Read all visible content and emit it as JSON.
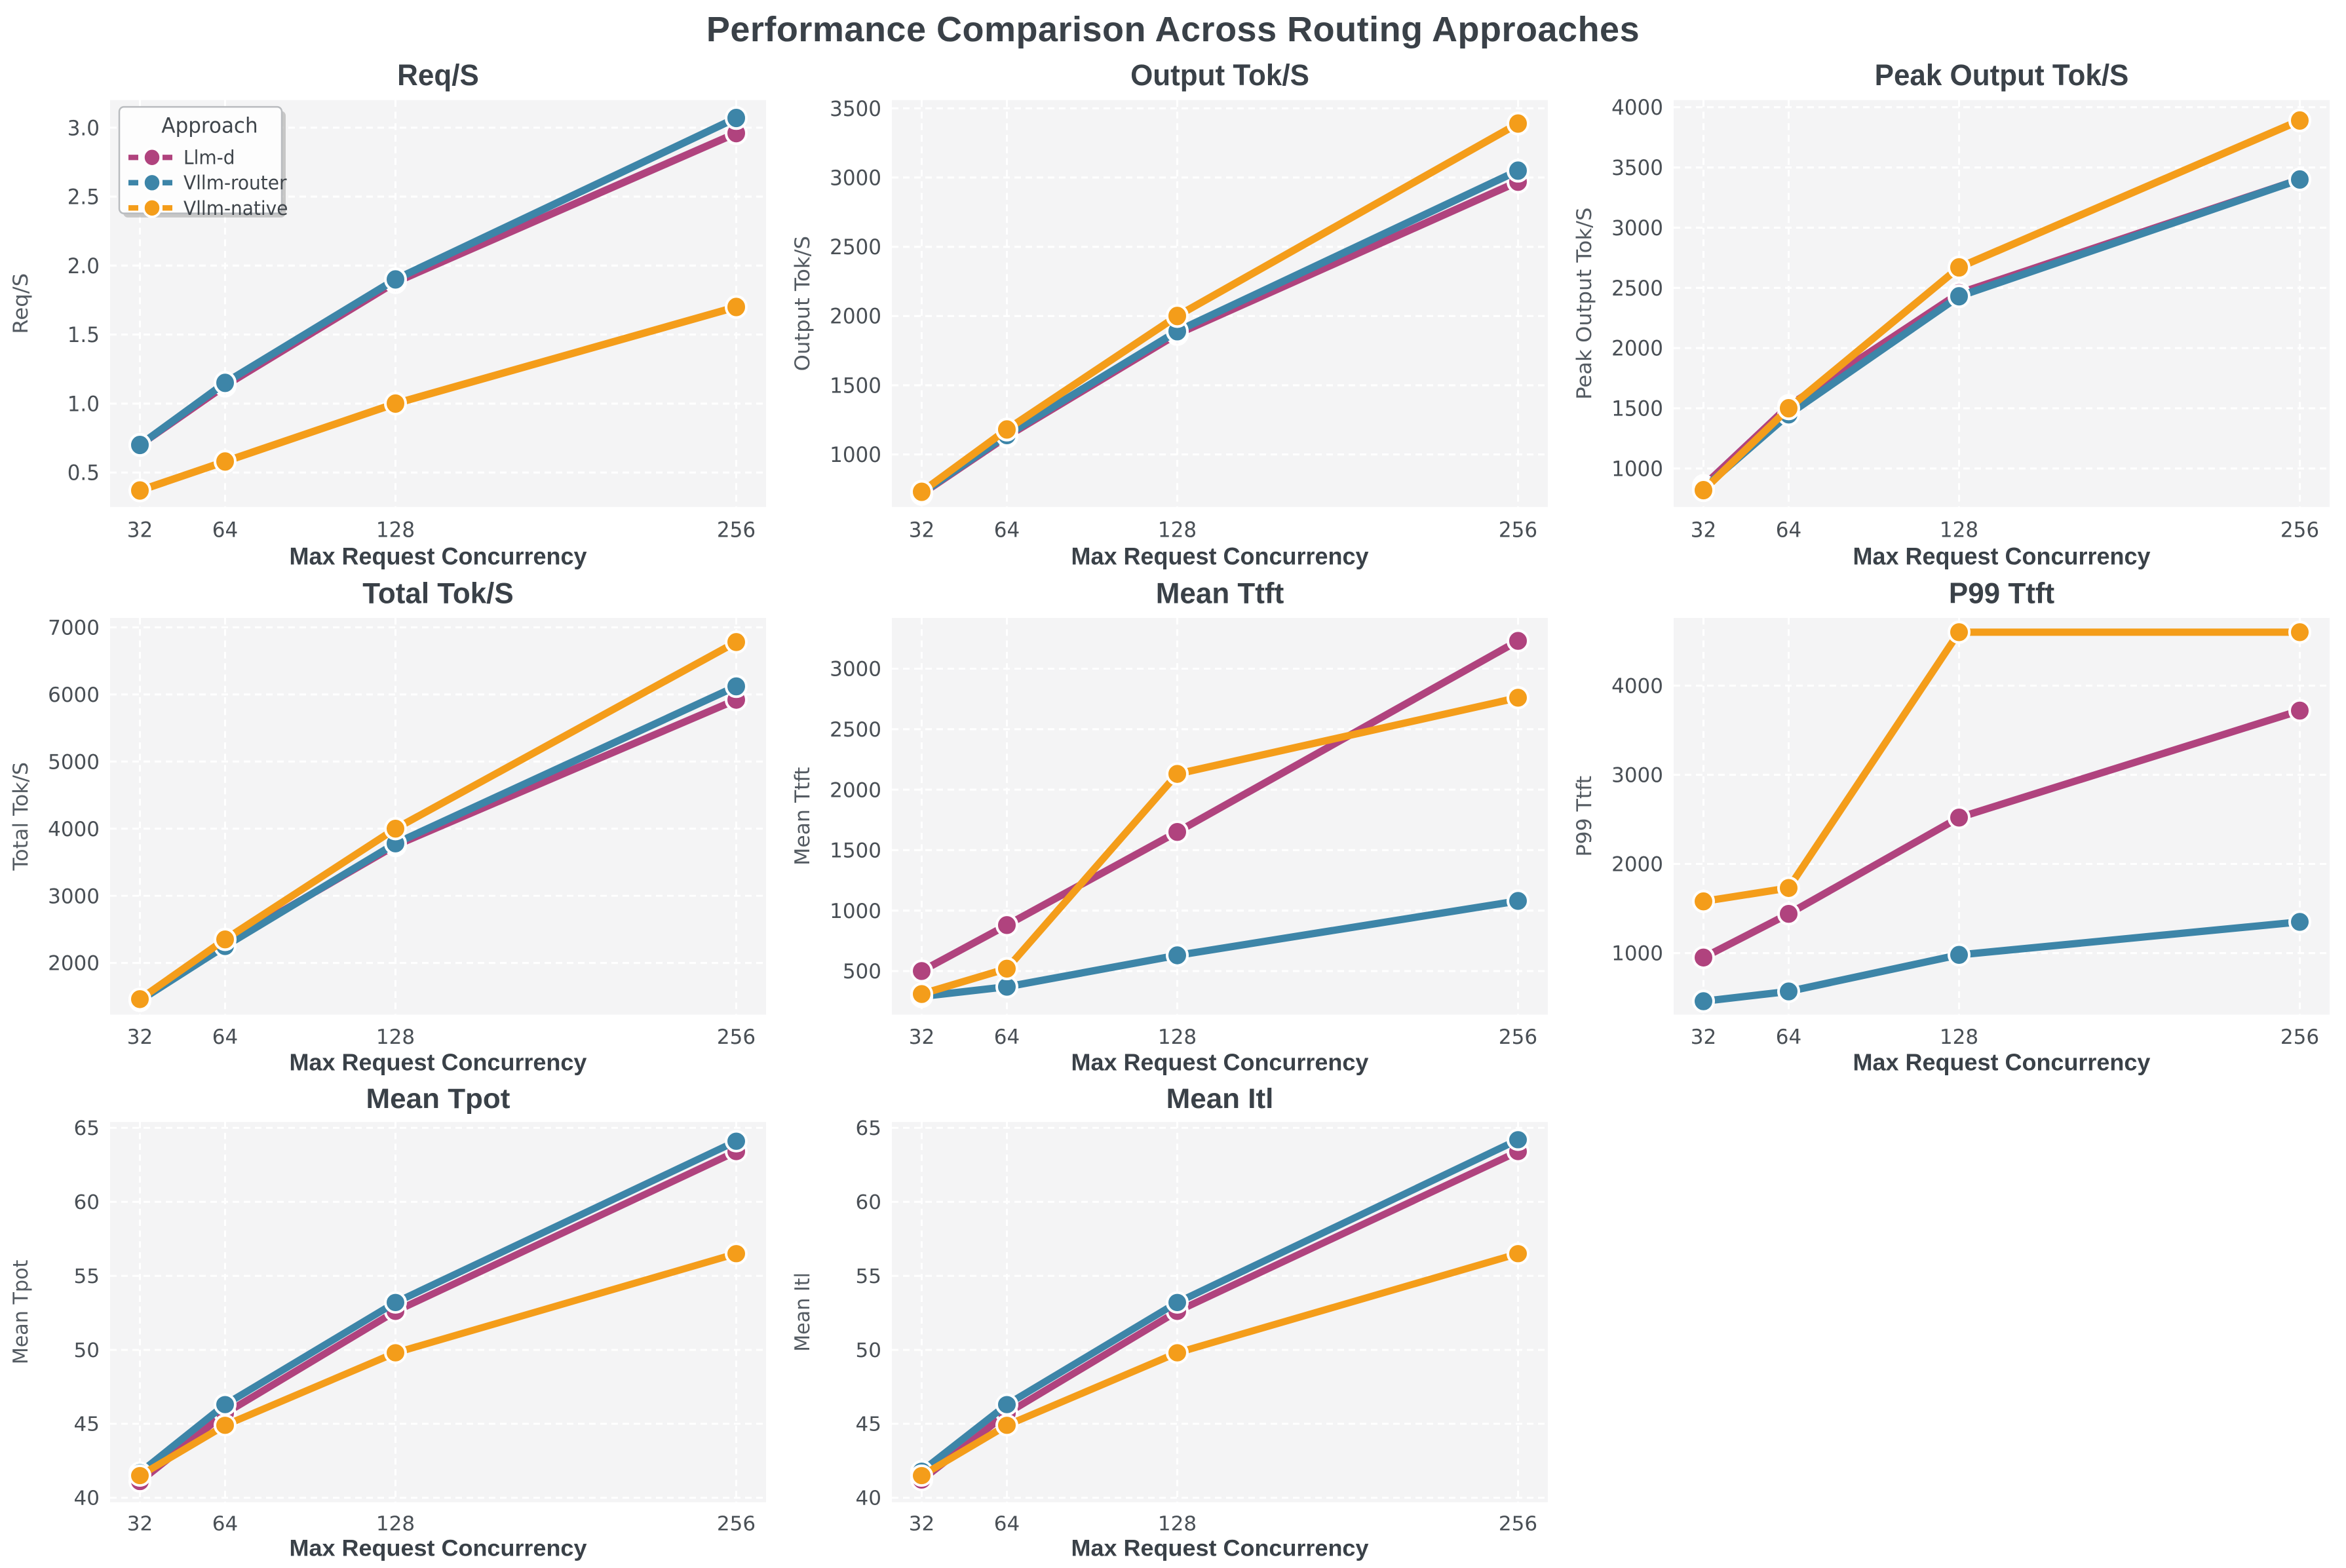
{
  "page": {
    "title": "Performance Comparison Across Routing Approaches"
  },
  "legend": {
    "title": "Approach",
    "entries": [
      {
        "label": "Llm-d",
        "color": "#b0437e"
      },
      {
        "label": "Vllm-router",
        "color": "#3d85a8"
      },
      {
        "label": "Vllm-native",
        "color": "#f49d1a"
      }
    ]
  },
  "colors": {
    "plot_bg": "#f4f4f5",
    "grid": "#ffffff",
    "title_text": "#3a4148",
    "tick_text": "#494f55",
    "legend_border": "#b9bcbf",
    "legend_bg": "#fdfdfd"
  },
  "chart_data": [
    {
      "type": "line",
      "title": "Req/S",
      "ylabel": "Req/S",
      "xlabel": "Max Request Concurrency",
      "x": [
        32,
        64,
        128,
        256
      ],
      "xtick_labels": [
        "32",
        "64",
        "128",
        "256"
      ],
      "yticks": [
        0.5,
        1.0,
        1.5,
        2.0,
        2.5,
        3.0
      ],
      "ytick_labels": [
        "0.5",
        "1.0",
        "1.5",
        "2.0",
        "2.5",
        "3.0"
      ],
      "ylim": [
        0.25,
        3.2
      ],
      "legend": true,
      "series": [
        {
          "name": "Llm-d",
          "values": [
            0.7,
            1.13,
            1.88,
            2.96
          ]
        },
        {
          "name": "Vllm-router",
          "values": [
            0.7,
            1.15,
            1.9,
            3.07
          ]
        },
        {
          "name": "Vllm-native",
          "values": [
            0.37,
            0.58,
            1.0,
            1.7
          ]
        }
      ]
    },
    {
      "type": "line",
      "title": "Output Tok/S",
      "ylabel": "Output Tok/S",
      "xlabel": "Max Request Concurrency",
      "x": [
        32,
        64,
        128,
        256
      ],
      "xtick_labels": [
        "32",
        "64",
        "128",
        "256"
      ],
      "yticks": [
        1000,
        1500,
        2000,
        2500,
        3000,
        3500
      ],
      "ylim": [
        620,
        3560
      ],
      "legend": false,
      "series": [
        {
          "name": "Llm-d",
          "values": [
            715,
            1130,
            1870,
            2970
          ]
        },
        {
          "name": "Vllm-router",
          "values": [
            720,
            1140,
            1890,
            3050
          ]
        },
        {
          "name": "Vllm-native",
          "values": [
            730,
            1180,
            2000,
            3390
          ]
        }
      ]
    },
    {
      "type": "line",
      "title": "Peak Output Tok/S",
      "ylabel": "Peak Output Tok/S",
      "xlabel": "Max Request Concurrency",
      "x": [
        32,
        64,
        128,
        256
      ],
      "xtick_labels": [
        "32",
        "64",
        "128",
        "256"
      ],
      "yticks": [
        1000,
        1500,
        2000,
        2500,
        3000,
        3500,
        4000
      ],
      "ylim": [
        680,
        4060
      ],
      "legend": false,
      "series": [
        {
          "name": "Llm-d",
          "values": [
            855,
            1520,
            2455,
            3400
          ]
        },
        {
          "name": "Vllm-router",
          "values": [
            835,
            1450,
            2430,
            3400
          ]
        },
        {
          "name": "Vllm-native",
          "values": [
            820,
            1500,
            2670,
            3890
          ]
        }
      ]
    },
    {
      "type": "line",
      "title": "Total Tok/S",
      "ylabel": "Total Tok/S",
      "xlabel": "Max Request Concurrency",
      "x": [
        32,
        64,
        128,
        256
      ],
      "xtick_labels": [
        "32",
        "64",
        "128",
        "256"
      ],
      "yticks": [
        2000,
        3000,
        4000,
        5000,
        6000,
        7000
      ],
      "ylim": [
        1230,
        7140
      ],
      "legend": false,
      "series": [
        {
          "name": "Llm-d",
          "values": [
            1450,
            2280,
            3750,
            5920
          ]
        },
        {
          "name": "Vllm-router",
          "values": [
            1440,
            2250,
            3780,
            6120
          ]
        },
        {
          "name": "Vllm-native",
          "values": [
            1460,
            2350,
            4000,
            6780
          ]
        }
      ]
    },
    {
      "type": "line",
      "title": "Mean Ttft",
      "ylabel": "Mean Ttft",
      "xlabel": "Max Request Concurrency",
      "x": [
        32,
        64,
        128,
        256
      ],
      "xtick_labels": [
        "32",
        "64",
        "128",
        "256"
      ],
      "yticks": [
        500,
        1000,
        1500,
        2000,
        2500,
        3000
      ],
      "ylim": [
        140,
        3420
      ],
      "legend": false,
      "series": [
        {
          "name": "Llm-d",
          "values": [
            500,
            880,
            1650,
            3230
          ]
        },
        {
          "name": "Vllm-router",
          "values": [
            290,
            370,
            630,
            1080
          ]
        },
        {
          "name": "Vllm-native",
          "values": [
            310,
            520,
            2130,
            2760
          ]
        }
      ]
    },
    {
      "type": "line",
      "title": "P99 Ttft",
      "ylabel": "P99 Ttft",
      "xlabel": "Max Request Concurrency",
      "x": [
        32,
        64,
        128,
        256
      ],
      "xtick_labels": [
        "32",
        "64",
        "128",
        "256"
      ],
      "yticks": [
        1000,
        2000,
        3000,
        4000
      ],
      "ylim": [
        310,
        4760
      ],
      "legend": false,
      "series": [
        {
          "name": "Llm-d",
          "values": [
            950,
            1440,
            2520,
            3720
          ]
        },
        {
          "name": "Vllm-router",
          "values": [
            460,
            570,
            980,
            1350
          ]
        },
        {
          "name": "Vllm-native",
          "values": [
            1580,
            1730,
            4600,
            4600
          ]
        }
      ]
    },
    {
      "type": "line",
      "title": "Mean Tpot",
      "ylabel": "Mean Tpot",
      "xlabel": "Max Request Concurrency",
      "x": [
        32,
        64,
        128,
        256
      ],
      "xtick_labels": [
        "32",
        "64",
        "128",
        "256"
      ],
      "yticks": [
        40,
        45,
        50,
        55,
        60,
        65
      ],
      "ylim": [
        39.7,
        65.4
      ],
      "legend": false,
      "series": [
        {
          "name": "Llm-d",
          "values": [
            41.1,
            45.7,
            52.6,
            63.4
          ]
        },
        {
          "name": "Vllm-router",
          "values": [
            41.7,
            46.3,
            53.2,
            64.1
          ]
        },
        {
          "name": "Vllm-native",
          "values": [
            41.5,
            44.9,
            49.8,
            56.5
          ]
        }
      ]
    },
    {
      "type": "line",
      "title": "Mean Itl",
      "ylabel": "Mean Itl",
      "xlabel": "Max Request Concurrency",
      "x": [
        32,
        64,
        128,
        256
      ],
      "xtick_labels": [
        "32",
        "64",
        "128",
        "256"
      ],
      "yticks": [
        40,
        45,
        50,
        55,
        60,
        65
      ],
      "ylim": [
        39.7,
        65.4
      ],
      "legend": false,
      "series": [
        {
          "name": "Llm-d",
          "values": [
            41.2,
            45.7,
            52.6,
            63.4
          ]
        },
        {
          "name": "Vllm-router",
          "values": [
            41.8,
            46.3,
            53.2,
            64.2
          ]
        },
        {
          "name": "Vllm-native",
          "values": [
            41.5,
            44.9,
            49.8,
            56.5
          ]
        }
      ]
    }
  ]
}
